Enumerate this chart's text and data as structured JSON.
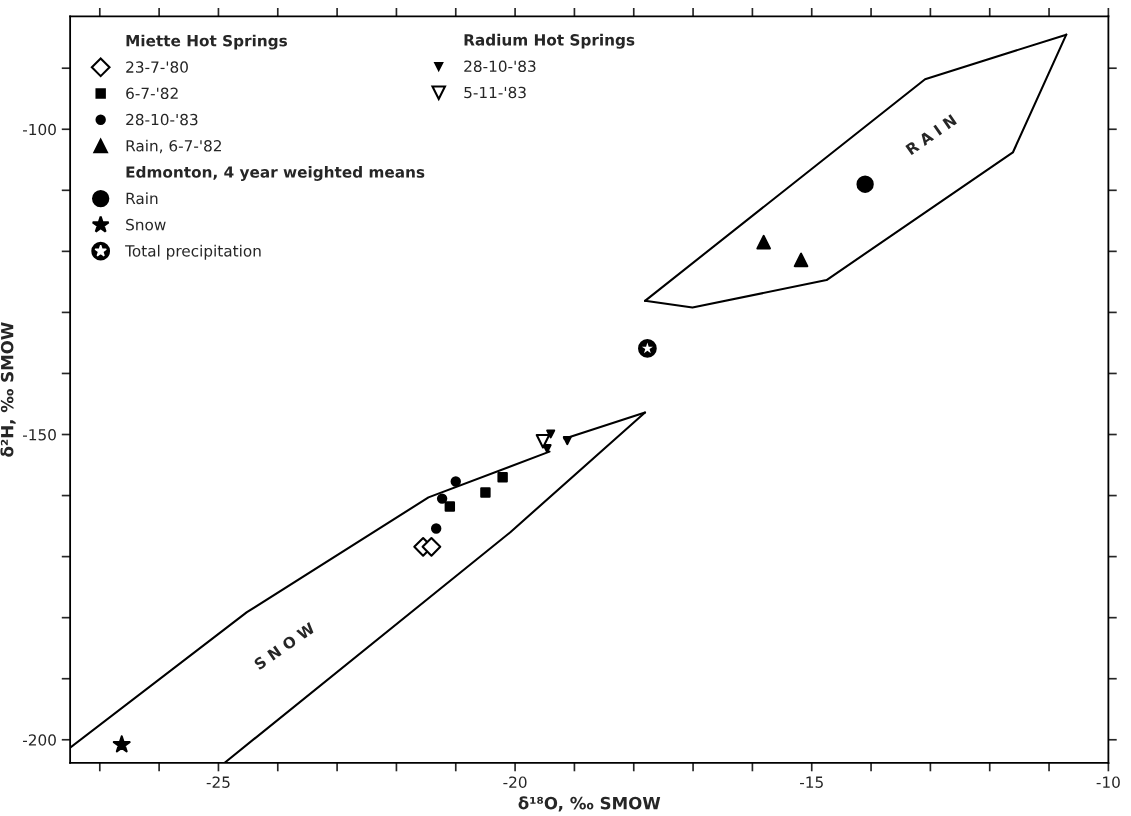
{
  "chart_data": {
    "type": "scatter",
    "xlabel": "δ¹⁸O, ‰ SMOW",
    "ylabel": "δ²H, ‰ SMOW",
    "xlim": [
      -27.5,
      -10
    ],
    "ylim": [
      -203.8,
      -81.5
    ],
    "xticks": [
      {
        "value": -27,
        "label": null
      },
      {
        "value": -26,
        "label": null
      },
      -25,
      {
        "value": -24,
        "label": null
      },
      {
        "value": -23,
        "label": null
      },
      {
        "value": -22,
        "label": null
      },
      {
        "value": -21,
        "label": null
      },
      -20,
      {
        "value": -19,
        "label": null
      },
      {
        "value": -18,
        "label": null
      },
      {
        "value": -17,
        "label": null
      },
      {
        "value": -16,
        "label": null
      },
      -15,
      {
        "value": -14,
        "label": null
      },
      {
        "value": -13,
        "label": null
      },
      {
        "value": -12,
        "label": null
      },
      {
        "value": -11,
        "label": null
      },
      -10
    ],
    "yticks": [
      -200,
      {
        "value": -190,
        "label": null
      },
      {
        "value": -180,
        "label": null
      },
      {
        "value": -170,
        "label": null
      },
      {
        "value": -160,
        "label": null
      },
      -150,
      {
        "value": -140,
        "label": null
      },
      {
        "value": -130,
        "label": null
      },
      {
        "value": -120,
        "label": null
      },
      {
        "value": -110,
        "label": null
      },
      -100,
      {
        "value": -90,
        "label": null
      }
    ],
    "grid": false,
    "legend": "top left",
    "series": [
      {
        "name": "23-7-'80",
        "color": "#000000",
        "marker": "diamond",
        "x": [
          -21.55,
          -21.41
        ],
        "values": [
          -168.4,
          -168.4
        ]
      },
      {
        "name": "6-7-'82",
        "color": "#000000",
        "marker": "square",
        "x": [
          -21.1,
          -20.5,
          -20.21
        ],
        "values": [
          -161.8,
          -159.5,
          -157.0
        ]
      },
      {
        "name": "28-10-'83",
        "color": "#000000",
        "marker": "circle",
        "x": [
          -21.0,
          -21.23,
          -21.33
        ],
        "values": [
          -157.7,
          -160.5,
          -165.4
        ]
      },
      {
        "name": "Rain, 6-7-'82",
        "color": "#000000",
        "marker": "triangle",
        "x": [
          -15.81,
          -15.18
        ],
        "values": [
          -118.5,
          -121.4
        ]
      },
      {
        "name": "Rain",
        "color": "#000000",
        "marker": "circle",
        "x": [
          -14.1
        ],
        "values": [
          -109.0
        ]
      },
      {
        "name": "Snow",
        "color": "#000000",
        "marker": "star",
        "x": [
          -26.63
        ],
        "values": [
          -200.8
        ]
      },
      {
        "name": "Total precipitation",
        "color": "#000000",
        "marker": "circle",
        "x": [
          -17.77
        ],
        "values": [
          -135.9
        ]
      },
      {
        "name": "28-10-'83",
        "color": "#000000",
        "marker": "triangle",
        "x": [
          -19.4,
          -19.12,
          -19.46
        ],
        "values": [
          -149.9,
          -151.0,
          -152.3
        ]
      },
      {
        "name": "5-11-'83",
        "color": "#000000",
        "marker": "triangle",
        "x": [
          -19.53
        ],
        "values": [
          -151.1
        ]
      },
      {
        "type": "line",
        "color": "#000000",
        "x": [
          -17.81,
          -13.09,
          -10.71
        ],
        "values": [
          -128.1,
          -91.8,
          -84.5
        ]
      },
      {
        "type": "line",
        "color": "#000000",
        "x": [
          -17.81,
          -17.01,
          -14.75,
          -11.61,
          -10.71
        ],
        "values": [
          -128.1,
          -129.2,
          -124.7,
          -103.8,
          -84.5
        ]
      },
      {
        "type": "line",
        "color": "#000000",
        "x": [
          -27.5,
          -24.52,
          -21.46,
          -19.42,
          null,
          -19.17,
          -17.81
        ],
        "values": [
          -201.3,
          -179.1,
          -160.3,
          -152.8,
          null,
          -150.7,
          -146.4
        ]
      },
      {
        "type": "line",
        "color": "#000000",
        "x": [
          -24.9,
          -20.08,
          -17.81
        ],
        "values": [
          -203.8,
          -166.0,
          -146.4
        ]
      }
    ],
    "annotations": [
      "Miette Hot Springs",
      "Edmonton, 4 year weighted means",
      "Radium Hot Springs",
      "R A I N",
      "S N O W"
    ]
  }
}
